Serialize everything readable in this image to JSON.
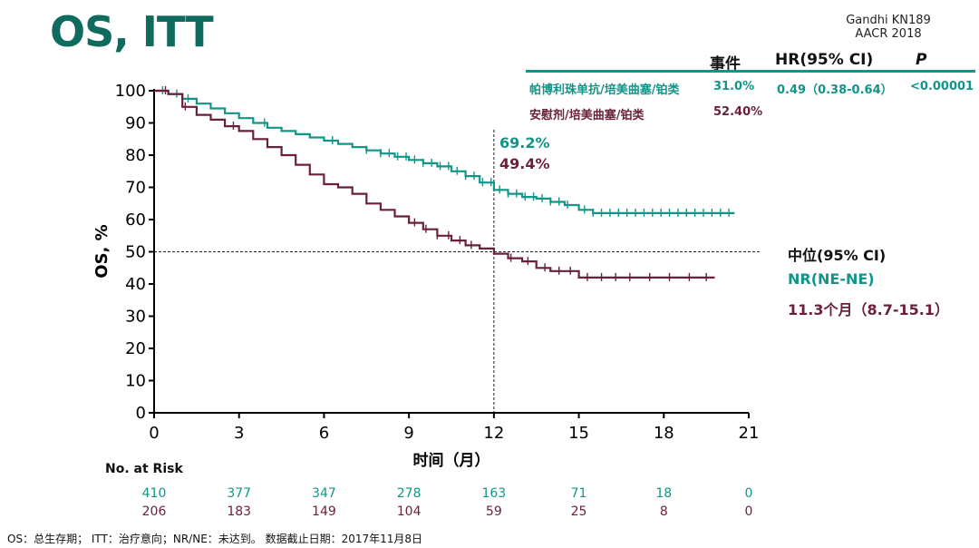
{
  "title": "OS, ITT",
  "source": {
    "line1": "Gandhi KN189",
    "line2": "AACR 2018"
  },
  "table": {
    "headers": {
      "events": "事件",
      "hr": "HR(95% CI)",
      "p": "P"
    },
    "rows": [
      {
        "name": "帕博利珠单抗/培美曲塞/铂类",
        "events": "31.0%",
        "hr": "0.49（0.38-0.64）",
        "p": "<0.00001"
      },
      {
        "name": "安慰剂/培美曲塞/铂类",
        "events": "52.40%",
        "hr": "",
        "p": ""
      }
    ]
  },
  "median": {
    "header": "中位(95% CI)",
    "pembro": "NR(NE-NE)",
    "placebo": "11.3个月（8.7-15.1）"
  },
  "risk": {
    "title": "No. at Risk",
    "pembro": [
      "410",
      "377",
      "347",
      "278",
      "163",
      "71",
      "18",
      "0"
    ],
    "placebo": [
      "206",
      "183",
      "149",
      "104",
      "59",
      "25",
      "8",
      "0"
    ]
  },
  "footnote": "OS：总生存期； ITT：治疗意向；NR/NE：未达到。 数据截止日期：2017年11月8日",
  "colors": {
    "teal": "#129589",
    "maroon": "#6b1f3a",
    "title": "#0e6b5e"
  },
  "chart_data": {
    "type": "line",
    "xlabel": "时间（月）",
    "ylabel": "OS, %",
    "xlim": [
      0,
      21
    ],
    "ylim": [
      0,
      100
    ],
    "xticks": [
      "0",
      "3",
      "6",
      "9",
      "12",
      "15",
      "18",
      "21"
    ],
    "yticks": [
      "0",
      "10",
      "20",
      "30",
      "40",
      "50",
      "60",
      "70",
      "80",
      "90",
      "100"
    ],
    "reference_lines": {
      "y": 50,
      "x": 12
    },
    "annotations": [
      {
        "text": "69.2%",
        "series": "帕博利珠单抗/培美曲塞/铂类",
        "x": 12
      },
      {
        "text": "49.4%",
        "series": "安慰剂/培美曲塞/铂类",
        "x": 12
      }
    ],
    "series": [
      {
        "name": "帕博利珠单抗/培美曲塞/铂类",
        "color": "#129589",
        "x": [
          0,
          0.5,
          1,
          1.5,
          2,
          2.5,
          3,
          3.5,
          4,
          4.5,
          5,
          5.5,
          6,
          6.5,
          7,
          7.5,
          8,
          8.5,
          9,
          9.5,
          10,
          10.5,
          11,
          11.5,
          12,
          12.5,
          13,
          13.5,
          14,
          14.5,
          15,
          15.5,
          16,
          17,
          18,
          19,
          20,
          20.5
        ],
        "y": [
          100,
          99,
          97.5,
          96,
          94.5,
          93,
          91.5,
          90,
          88.5,
          87.5,
          86.5,
          85.5,
          84.5,
          83.5,
          82.5,
          81.5,
          80.5,
          79.5,
          78.5,
          77.5,
          76.5,
          75,
          73.5,
          71.5,
          69.2,
          68,
          67,
          66.5,
          65.5,
          64.5,
          63,
          62,
          62,
          62,
          62,
          62,
          62,
          62
        ],
        "censor_x": [
          0.3,
          0.8,
          1.2,
          3.9,
          6.3,
          7.5,
          8.0,
          8.3,
          8.6,
          8.9,
          9.2,
          9.5,
          9.8,
          10.1,
          10.4,
          10.7,
          11.0,
          11.3,
          11.6,
          11.9,
          12.2,
          12.5,
          12.8,
          13.1,
          13.4,
          13.7,
          14.0,
          14.3,
          14.6,
          15.2,
          15.5,
          15.8,
          16.1,
          16.4,
          16.7,
          17.0,
          17.3,
          17.6,
          17.9,
          18.2,
          18.5,
          18.8,
          19.1,
          19.4,
          19.7,
          20.0,
          20.3
        ]
      },
      {
        "name": "安慰剂/培美曲塞/铂类",
        "color": "#6b1f3a",
        "x": [
          0,
          0.5,
          1,
          1.5,
          2,
          2.5,
          3,
          3.5,
          4,
          4.5,
          5,
          5.5,
          6,
          6.5,
          7,
          7.5,
          8,
          8.5,
          9,
          9.5,
          10,
          10.5,
          11,
          11.5,
          12,
          12.5,
          13,
          13.5,
          14,
          14.5,
          15,
          16,
          17,
          18,
          19,
          19.8
        ],
        "y": [
          100,
          99,
          95,
          92.5,
          91,
          89,
          87.5,
          85,
          82.5,
          80,
          77,
          74,
          71,
          70,
          68,
          65,
          63,
          61,
          59,
          57,
          55,
          53.5,
          52,
          51,
          49.4,
          48,
          47,
          45,
          44,
          44,
          42,
          42,
          42,
          42,
          42,
          42
        ],
        "censor_x": [
          0.4,
          1.1,
          2.8,
          9.2,
          9.6,
          10.0,
          10.4,
          10.8,
          11.2,
          12.6,
          13.2,
          13.8,
          14.3,
          14.7,
          15.3,
          15.8,
          16.3,
          16.8,
          17.5,
          18.2,
          18.9,
          19.5
        ]
      }
    ]
  }
}
